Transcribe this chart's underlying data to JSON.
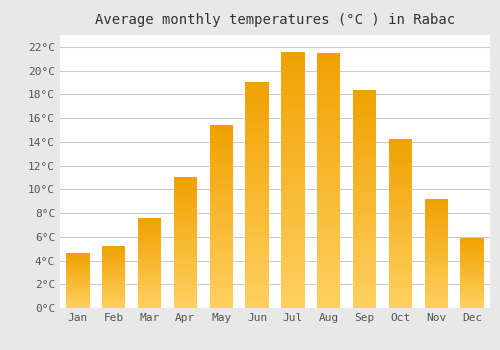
{
  "title": "Average monthly temperatures (°C ) in Rabac",
  "months": [
    "Jan",
    "Feb",
    "Mar",
    "Apr",
    "May",
    "Jun",
    "Jul",
    "Aug",
    "Sep",
    "Oct",
    "Nov",
    "Dec"
  ],
  "temperatures": [
    4.6,
    5.2,
    7.6,
    11.0,
    15.4,
    19.0,
    21.6,
    21.5,
    18.4,
    14.2,
    9.2,
    5.9
  ],
  "bar_color_dark": "#F0A000",
  "bar_color_light": "#FFD060",
  "background_color": "#E8E8E8",
  "plot_bg_color": "#FFFFFF",
  "grid_color": "#CCCCCC",
  "ylim": [
    0,
    23
  ],
  "ytick_values": [
    0,
    2,
    4,
    6,
    8,
    10,
    12,
    14,
    16,
    18,
    20,
    22
  ],
  "title_fontsize": 10,
  "tick_fontsize": 8,
  "font_family": "monospace"
}
